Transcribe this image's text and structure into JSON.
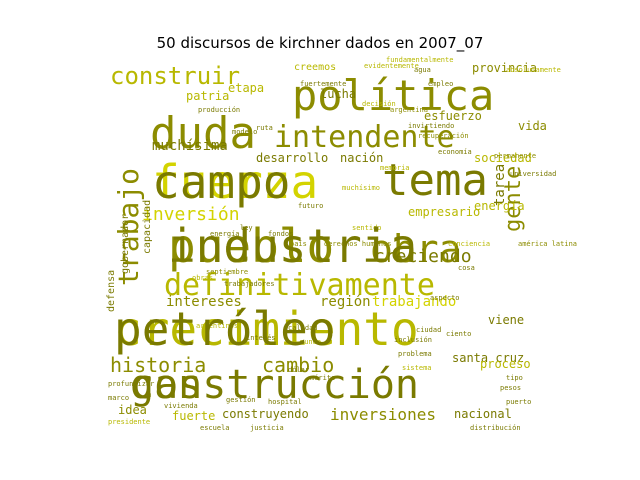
{
  "title": "50 discursos de kirchner dados en 2007_07",
  "palette": {
    "light": "#d3d300",
    "mid": "#b8b800",
    "dark": "#8c8c00",
    "darker": "#7a7a00"
  },
  "words": [
    {
      "text": "crecimiento",
      "weight": 1.0,
      "tone": "mid"
    },
    {
      "text": "construcción",
      "weight": 0.86,
      "tone": "darker"
    },
    {
      "text": "pueblo",
      "weight": 0.9,
      "tone": "dark"
    },
    {
      "text": "fuerza",
      "weight": 0.9,
      "tone": "light"
    },
    {
      "text": "política",
      "weight": 0.84,
      "tone": "dark"
    },
    {
      "text": "duda",
      "weight": 0.72,
      "tone": "dark"
    },
    {
      "text": "tema",
      "weight": 0.76,
      "tone": "darker"
    },
    {
      "text": "obra",
      "weight": 0.72,
      "tone": "dark"
    },
    {
      "text": "definitivamente",
      "weight": 0.6,
      "tone": "mid"
    },
    {
      "text": "intendente",
      "weight": 0.56,
      "tone": "dark"
    },
    {
      "text": "trabajo",
      "weight": 0.55,
      "tone": "dark"
    },
    {
      "text": "construir",
      "weight": 0.46,
      "tone": "mid"
    },
    {
      "text": "historia",
      "weight": 0.38,
      "tone": "dark"
    },
    {
      "text": "cambio",
      "weight": 0.38,
      "tone": "dark"
    },
    {
      "text": "gente",
      "weight": 0.36,
      "tone": "dark"
    },
    {
      "text": "creciendo",
      "weight": 0.32,
      "tone": "darker"
    },
    {
      "text": "inversión",
      "weight": 0.32,
      "tone": "light"
    },
    {
      "text": "inversiones",
      "weight": 0.26,
      "tone": "dark"
    },
    {
      "text": "muchísima",
      "weight": 0.26,
      "tone": "darker"
    },
    {
      "text": "intereses",
      "weight": 0.24,
      "tone": "dark"
    },
    {
      "text": "región",
      "weight": 0.22,
      "tone": "dark"
    },
    {
      "text": "trabajando",
      "weight": 0.22,
      "tone": "light"
    },
    {
      "text": "santa cruz",
      "weight": 0.22,
      "tone": "darker"
    },
    {
      "text": "tarea",
      "weight": 0.24,
      "tone": "darker"
    },
    {
      "text": "provincia",
      "weight": 0.2,
      "tone": "dark"
    },
    {
      "text": "creemos",
      "weight": 0.18,
      "tone": "mid"
    },
    {
      "text": "patria",
      "weight": 0.18,
      "tone": "mid"
    },
    {
      "text": "etapa",
      "weight": 0.18,
      "tone": "mid"
    },
    {
      "text": "lucha",
      "weight": 0.18,
      "tone": "darker"
    },
    {
      "text": "esfuerzo",
      "weight": 0.2,
      "tone": "dark"
    },
    {
      "text": "vida",
      "weight": 0.18,
      "tone": "dark"
    },
    {
      "text": "energía",
      "weight": 0.18,
      "tone": "mid"
    },
    {
      "text": "sociedad",
      "weight": 0.18,
      "tone": "mid"
    },
    {
      "text": "desarrollo",
      "weight": 0.16,
      "tone": "darker"
    },
    {
      "text": "nación",
      "weight": 0.16,
      "tone": "darker"
    },
    {
      "text": "empresario",
      "weight": 0.16,
      "tone": "mid"
    },
    {
      "text": "capacidad",
      "weight": 0.14,
      "tone": "darker"
    },
    {
      "text": "gobernador",
      "weight": 0.14,
      "tone": "darker"
    },
    {
      "text": "defensa",
      "weight": 0.14,
      "tone": "darker"
    },
    {
      "text": "viene",
      "weight": 0.18,
      "tone": "darker"
    },
    {
      "text": "proceso",
      "weight": 0.18,
      "tone": "mid"
    },
    {
      "text": "idea",
      "weight": 0.16,
      "tone": "dark"
    },
    {
      "text": "fuerte",
      "weight": 0.16,
      "tone": "mid"
    },
    {
      "text": "construyendo",
      "weight": 0.16,
      "tone": "darker"
    },
    {
      "text": "nacional",
      "weight": 0.16,
      "tone": "darker"
    },
    {
      "text": "problema",
      "weight": 0.1,
      "tone": "darker"
    },
    {
      "text": "sistema",
      "weight": 0.1,
      "tone": "mid"
    },
    {
      "text": "fundamentalmente",
      "weight": 0.1,
      "tone": "mid"
    },
    {
      "text": "absolutamente",
      "weight": 0.09,
      "tone": "mid"
    },
    {
      "text": "permanente",
      "weight": 0.08,
      "tone": "dark"
    },
    {
      "text": "américa latina",
      "weight": 0.08,
      "tone": "dark"
    },
    {
      "text": "derechos humanos",
      "weight": 0.08,
      "tone": "dark"
    },
    {
      "text": "futuro",
      "weight": 0.08,
      "tone": "darker"
    },
    {
      "text": "modelo",
      "weight": 0.08,
      "tone": "darker"
    },
    {
      "text": "ruta",
      "weight": 0.09,
      "tone": "darker"
    },
    {
      "text": "muchísimo",
      "weight": 0.08,
      "tone": "mid"
    },
    {
      "text": "fuertemente",
      "weight": 0.08,
      "tone": "darker"
    },
    {
      "text": "memoria",
      "weight": 0.08,
      "tone": "mid"
    },
    {
      "text": "argentina",
      "weight": 0.08,
      "tone": "dark"
    },
    {
      "text": "invirtiendo",
      "weight": 0.08,
      "tone": "darker"
    },
    {
      "text": "producción",
      "weight": 0.08,
      "tone": "darker"
    },
    {
      "text": "recuperación",
      "weight": 0.08,
      "tone": "dark"
    },
    {
      "text": "presidente",
      "weight": 0.08,
      "tone": "mid"
    },
    {
      "text": "evidentemente",
      "weight": 0.08,
      "tone": "mid"
    },
    {
      "text": "agua",
      "weight": 0.08,
      "tone": "darker"
    },
    {
      "text": "empleo",
      "weight": 0.08,
      "tone": "darker"
    },
    {
      "text": "mérito",
      "weight": 0.08,
      "tone": "darker"
    },
    {
      "text": "dólar",
      "weight": 0.08,
      "tone": "darker"
    },
    {
      "text": "tipo",
      "weight": 0.08,
      "tone": "darker"
    },
    {
      "text": "pesos",
      "weight": 0.08,
      "tone": "darker"
    },
    {
      "text": "profundizar",
      "weight": 0.08,
      "tone": "darker"
    },
    {
      "text": "marco",
      "weight": 0.08,
      "tone": "darker"
    },
    {
      "text": "trabajadores",
      "weight": 0.08,
      "tone": "darker"
    },
    {
      "text": "septiembre",
      "weight": 0.08,
      "tone": "dark"
    },
    {
      "text": "conciencia",
      "weight": 0.08,
      "tone": "mid"
    },
    {
      "text": "decisión",
      "weight": 0.08,
      "tone": "mid"
    },
    {
      "text": "economía",
      "weight": 0.08,
      "tone": "darker"
    },
    {
      "text": "aspecto",
      "weight": 0.08,
      "tone": "darker"
    },
    {
      "text": "cosa",
      "weight": 0.08,
      "tone": "darker"
    },
    {
      "text": "obras",
      "weight": 0.08,
      "tone": "mid"
    },
    {
      "text": "universidad",
      "weight": 0.08,
      "tone": "darker"
    },
    {
      "text": "energía",
      "weight": 0.08,
      "tone": "darker"
    },
    {
      "text": "ley",
      "weight": 0.08,
      "tone": "darker"
    },
    {
      "text": "fondos",
      "weight": 0.08,
      "tone": "darker"
    },
    {
      "text": "sentido",
      "weight": 0.08,
      "tone": "mid"
    },
    {
      "text": "país",
      "weight": 0.08,
      "tone": "dark"
    },
    {
      "text": "argentinos",
      "weight": 0.08,
      "tone": "mid"
    },
    {
      "text": "calidad",
      "weight": 0.08,
      "tone": "darker"
    },
    {
      "text": "ciudad",
      "weight": 0.08,
      "tone": "darker"
    },
    {
      "text": "ciento",
      "weight": 0.08,
      "tone": "darker"
    },
    {
      "text": "interés",
      "weight": 0.08,
      "tone": "darker"
    },
    {
      "text": "mundo",
      "weight": 0.08,
      "tone": "mid"
    },
    {
      "text": "inclusión",
      "weight": 0.08,
      "tone": "darker"
    },
    {
      "text": "gestión",
      "weight": 0.08,
      "tone": "darker"
    },
    {
      "text": "hospital",
      "weight": 0.08,
      "tone": "darker"
    },
    {
      "text": "vivienda",
      "weight": 0.08,
      "tone": "darker"
    },
    {
      "text": "escuela",
      "weight": 0.08,
      "tone": "darker"
    },
    {
      "text": "justicia",
      "weight": 0.08,
      "tone": "darker"
    },
    {
      "text": "distribución",
      "weight": 0.08,
      "tone": "darker"
    },
    {
      "text": "puerto",
      "weight": 0.08,
      "tone": "darker"
    },
    {
      "text": "petróleo",
      "weight": 0.08,
      "tone": "darker"
    },
    {
      "text": "gas",
      "weight": 0.08,
      "tone": "darker"
    },
    {
      "text": "industria",
      "weight": 0.08,
      "tone": "darker"
    },
    {
      "text": "campo",
      "weight": 0.08,
      "tone": "darker"
    }
  ]
}
